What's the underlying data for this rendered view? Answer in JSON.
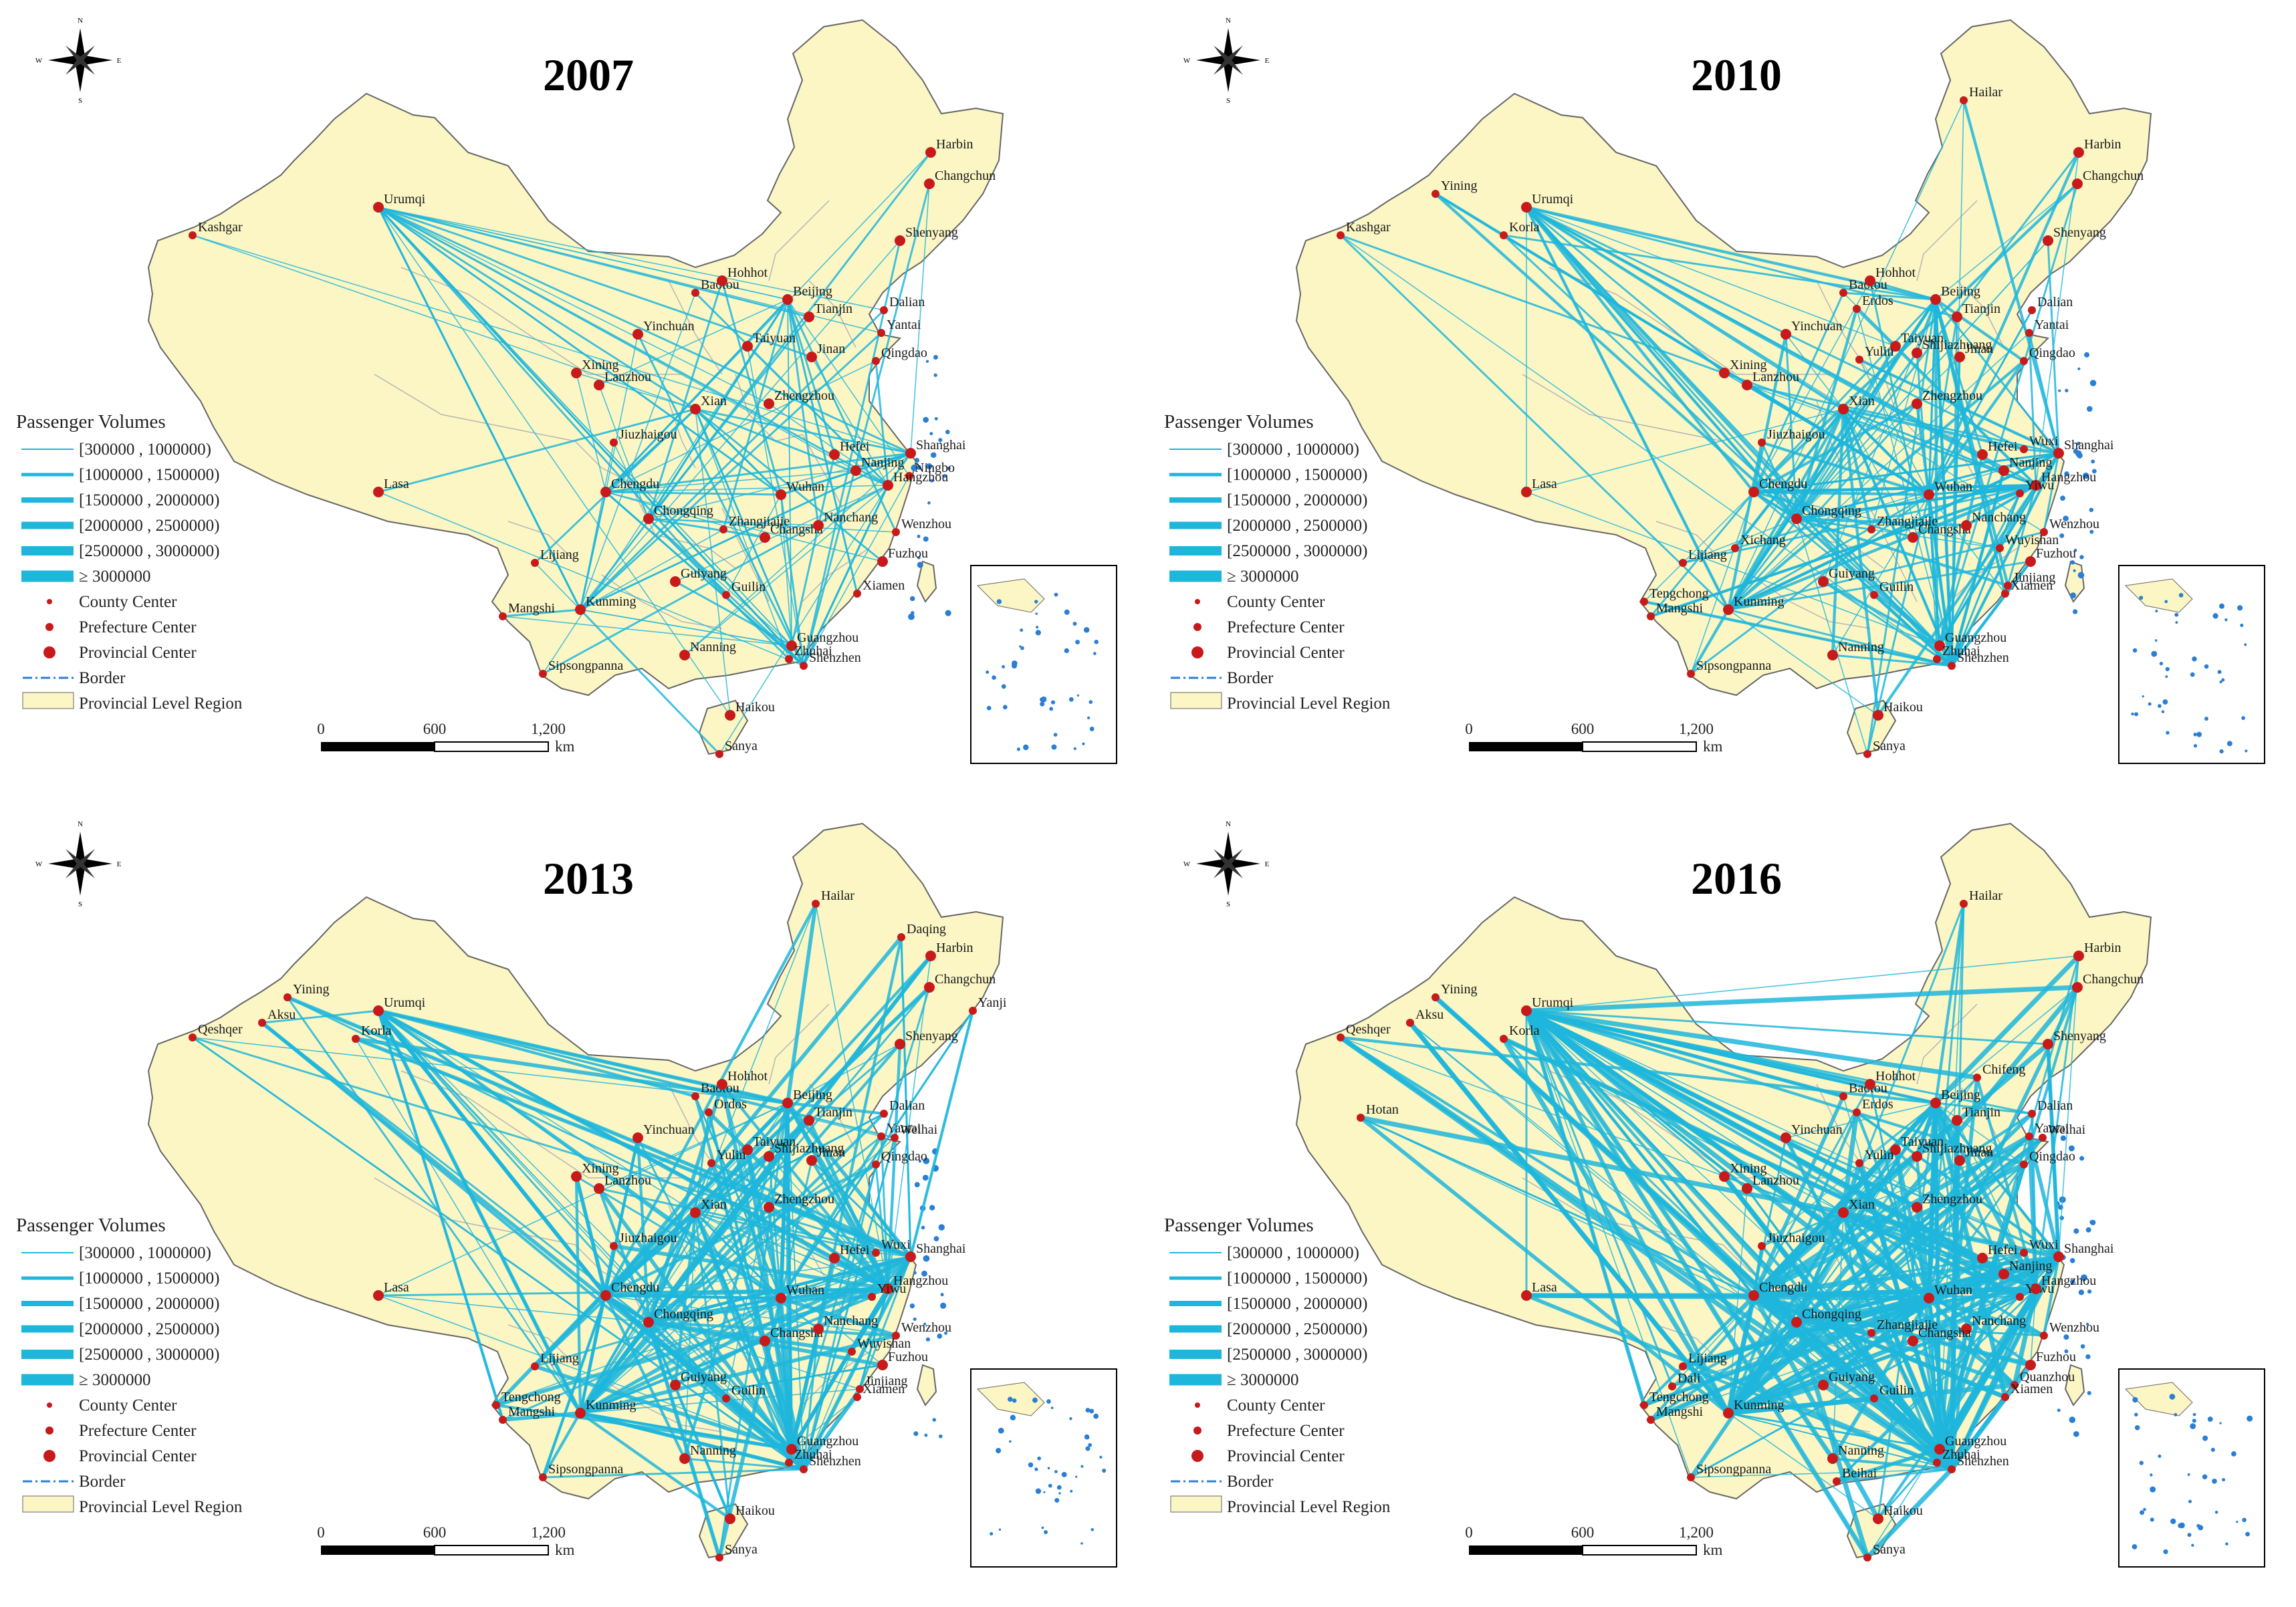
{
  "colors": {
    "land": "#fbf6c4",
    "boundary": "#b6b6b6",
    "outline": "#666666",
    "route": "#1fb6dc",
    "city": "#c81a1a",
    "coast_island": "#2a7fd4"
  },
  "legend": {
    "title": "Passenger Volumes",
    "classes": [
      "[300000 , 1000000)",
      "[1000000 , 1500000)",
      "[1500000 , 2000000)",
      "[2000000 , 2500000)",
      "[2500000 , 3000000)",
      "≥ 3000000"
    ],
    "county": "County Center",
    "prefecture": "Prefecture Center",
    "provincial": "Provincial Center",
    "border": "Border",
    "region": "Provincial Level Region"
  },
  "scale_bar": {
    "ticks": [
      "0",
      "600",
      "1,200"
    ],
    "unit": "km"
  },
  "compass": {
    "n": "N",
    "s": "S",
    "e": "E",
    "w": "W"
  },
  "panels": [
    {
      "year": "2007",
      "cities": [
        "Harbin",
        "Changchun",
        "Shenyang",
        "Urumqi",
        "Kashgar",
        "Baotou",
        "Hohhot",
        "Beijing",
        "Dalian",
        "Tianjin",
        "Yantai",
        "Yinchuan",
        "Taiyuan",
        "Jinan",
        "Qingdao",
        "Xining",
        "Lanzhou",
        "Xian",
        "Zhengzhou",
        "Jiuzhaigou",
        "Hefei",
        "Shanghai",
        "Nanjing",
        "Ningbo",
        "Hangzhou",
        "Lasa",
        "Chengdu",
        "Wuhan",
        "Chongqing",
        "Zhangjiajie",
        "Changsha",
        "Nanchang",
        "Wenzhou",
        "Fuzhou",
        "Xiamen",
        "Lijiang",
        "Guiyang",
        "Guilin",
        "Kunming",
        "Mangshi",
        "Nanning",
        "Guangzhou",
        "Zhuhai",
        "Shenzhen",
        "Sipsongpanna",
        "Haikou",
        "Sanya"
      ]
    },
    {
      "year": "2010",
      "cities": [
        "Hailar",
        "Harbin",
        "Changchun",
        "Shenyang",
        "Yining",
        "Urumqi",
        "Korla",
        "Kashgar",
        "Baotou",
        "Hohhot",
        "Erdos",
        "Beijing",
        "Dalian",
        "Tianjin",
        "Yantai",
        "Yinchuan",
        "Taiyuan",
        "Yulin",
        "Shijiazhuang",
        "Jinan",
        "Qingdao",
        "Xining",
        "Lanzhou",
        "Xian",
        "Zhengzhou",
        "Jiuzhaigou",
        "Hefei",
        "Wuxi",
        "Shanghai",
        "Nanjing",
        "Hangzhou",
        "Yiwu",
        "Lasa",
        "Chengdu",
        "Wuhan",
        "Chongqing",
        "Xichang",
        "Zhangjiajie",
        "Changsha",
        "Nanchang",
        "Wuyishan",
        "Wenzhou",
        "Fuzhou",
        "Lijiang",
        "Guiyang",
        "Guilin",
        "Jinjiang",
        "Xiamen",
        "Tengchong",
        "Mangshi",
        "Kunming",
        "Nanning",
        "Guangzhou",
        "Zhuhai",
        "Shenzhen",
        "Sipsongpanna",
        "Haikou",
        "Sanya"
      ]
    },
    {
      "year": "2013",
      "cities": [
        "Hailar",
        "Daqing",
        "Harbin",
        "Changchun",
        "Yanji",
        "Shenyang",
        "Yining",
        "Urumqi",
        "Korla",
        "Qeshqer",
        "Aksu",
        "Baotou",
        "Hohhot",
        "Ordos",
        "Beijing",
        "Tianjin",
        "Dalian",
        "Yantai",
        "Weihai",
        "Yinchuan",
        "Taiyuan",
        "Yulin",
        "Shijiazhuang",
        "Jinan",
        "Qingdao",
        "Xining",
        "Lanzhou",
        "Xian",
        "Zhengzhou",
        "Jiuzhaigou",
        "Hefei",
        "Wuxi",
        "Shanghai",
        "Lasa",
        "Chengdu",
        "Wuhan",
        "Hangzhou",
        "Yiwu",
        "Chongqing",
        "Changsha",
        "Nanchang",
        "Wenzhou",
        "Wuyishan",
        "Fuzhou",
        "Lijiang",
        "Guiyang",
        "Guilin",
        "Jinjiang",
        "Xiamen",
        "Tengchong",
        "Mangshi",
        "Kunming",
        "Nanning",
        "Guangzhou",
        "Zhuhai",
        "Shenzhen",
        "Sipsongpanna",
        "Haikou",
        "Sanya"
      ]
    },
    {
      "year": "2016",
      "cities": [
        "Hailar",
        "Harbin",
        "Changchun",
        "Chifeng",
        "Shenyang",
        "Yining",
        "Urumqi",
        "Korla",
        "Qeshqer",
        "Aksu",
        "Hotan",
        "Baotou",
        "Hohhot",
        "Erdos",
        "Beijing",
        "Tianjin",
        "Dalian",
        "Yantai",
        "Weihai",
        "Yinchuan",
        "Taiyuan",
        "Yulin",
        "Shijiazhuang",
        "Jinan",
        "Qingdao",
        "Xining",
        "Lanzhou",
        "Xian",
        "Zhengzhou",
        "Jiuzhaigou",
        "Hefei",
        "Wuxi",
        "Shanghai",
        "Nanjing",
        "Yiwu",
        "Hangzhou",
        "Lasa",
        "Chengdu",
        "Wuhan",
        "Chongqing",
        "Nanchang",
        "Wenzhou",
        "Changsha",
        "Zhangjiajie",
        "Fuzhou",
        "Lijiang",
        "Guiyang",
        "Guilin",
        "Quanzhou",
        "Xiamen",
        "Dali",
        "Tengchong",
        "Mangshi",
        "Kunming",
        "Nanning",
        "Guangzhou",
        "Zhuhai",
        "Shenzhen",
        "Beihai",
        "Sipsongpanna",
        "Haikou",
        "Sanya"
      ]
    }
  ]
}
